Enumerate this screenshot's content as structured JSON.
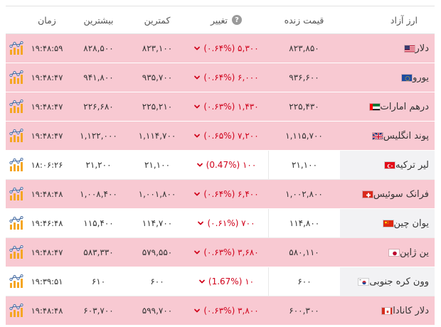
{
  "headers": {
    "name": "ارز آزاد",
    "price": "قیمت زنده",
    "change": "تغییر",
    "low": "کمترین",
    "high": "بیشترین",
    "time": "زمان"
  },
  "colors": {
    "negative_row": "#f8c9d2",
    "change_text": "#d0021b",
    "chart_orange": "#f5a623",
    "chart_blue": "#4a6fa5"
  },
  "rows": [
    {
      "name": "دلار",
      "flag": "us-flag-icon",
      "price": "۸۲۳,۸۵۰",
      "change": "(۰.۶۴%) ۵,۳۰۰",
      "low": "۸۲۳,۱۰۰",
      "high": "۸۲۸,۵۰۰",
      "time": "۱۹:۴۸:۵۹",
      "state": "neg"
    },
    {
      "name": "یورو",
      "flag": "eu-flag-icon",
      "price": "۹۳۶,۶۰۰",
      "change": "(۰.۶۴%) ۶,۰۰۰",
      "low": "۹۳۵,۷۰۰",
      "high": "۹۴۱,۸۰۰",
      "time": "۱۹:۴۸:۴۷",
      "state": "neg"
    },
    {
      "name": "درهم امارات",
      "flag": "ae-flag-icon",
      "price": "۲۲۵,۴۳۰",
      "change": "(۰.۶۳%) ۱,۴۳۰",
      "low": "۲۲۵,۲۱۰",
      "high": "۲۲۶,۶۸۰",
      "time": "۱۹:۴۸:۴۷",
      "state": "neg"
    },
    {
      "name": "پوند انگلیس",
      "flag": "gb-flag-icon",
      "price": "۱,۱۱۵,۷۰۰",
      "change": "(۰.۶۵%) ۷,۲۰۰",
      "low": "۱,۱۱۴,۷۰۰",
      "high": "۱,۱۲۲,۰۰۰",
      "time": "۱۹:۴۸:۴۷",
      "state": "neg"
    },
    {
      "name": "لیر ترکیه",
      "flag": "tr-flag-icon",
      "price": "۲۱,۱۰۰",
      "change": "(0.47%) ۱۰۰",
      "low": "۲۱,۱۰۰",
      "high": "۲۱,۲۰۰",
      "time": "۱۸:۰۶:۲۶",
      "state": "neutral"
    },
    {
      "name": "فرانک سوئیس",
      "flag": "ch-flag-icon",
      "price": "۱,۰۰۲,۸۰۰",
      "change": "(۰.۶۴%) ۶,۴۰۰",
      "low": "۱,۰۰۱,۸۰۰",
      "high": "۱,۰۰۸,۴۰۰",
      "time": "۱۹:۴۸:۴۸",
      "state": "neg"
    },
    {
      "name": "یوان چین",
      "flag": "cn-flag-icon",
      "price": "۱۱۴,۸۰۰",
      "change": "(۰.۶۱%) ۷۰۰",
      "low": "۱۱۴,۷۰۰",
      "high": "۱۱۵,۴۰۰",
      "time": "۱۹:۴۶:۴۸",
      "state": "neutral"
    },
    {
      "name": "ین ژاپن",
      "flag": "jp-flag-icon",
      "price": "۵۸۰,۱۱۰",
      "change": "(۰.۶۳%) ۳,۶۸۰",
      "low": "۵۷۹,۵۵۰",
      "high": "۵۸۳,۳۳۰",
      "time": "۱۹:۴۸:۴۷",
      "state": "neg"
    },
    {
      "name": "وون کره جنوبی",
      "flag": "kr-flag-icon",
      "price": "۶۰۰",
      "change": "(1.67%) ۱۰",
      "low": "۶۰۰",
      "high": "۶۱۰",
      "time": "۱۹:۳۹:۵۱",
      "state": "neutral"
    },
    {
      "name": "دلار کانادا",
      "flag": "ca-flag-icon",
      "price": "۶۰۰,۳۰۰",
      "change": "(۰.۶۳%) ۳,۸۰۰",
      "low": "۵۹۹,۷۰۰",
      "high": "۶۰۳,۷۰۰",
      "time": "۱۹:۴۸:۴۸",
      "state": "neg"
    }
  ]
}
